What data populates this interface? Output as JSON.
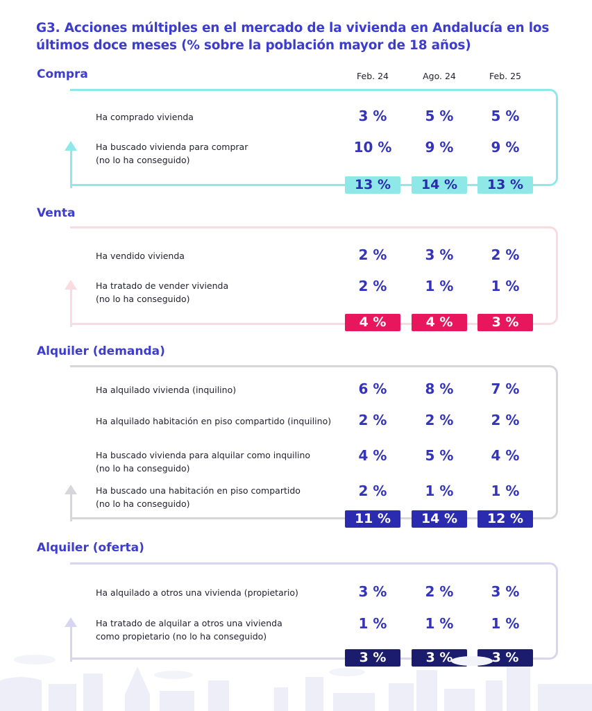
{
  "title": "G3. Acciones múltiples en el mercado de la vivienda en Andalucía en los últimos doce meses (% sobre la población mayor de 18 años)",
  "chart_data": {
    "type": "table",
    "columns": [
      "Feb. 24",
      "Ago. 24",
      "Feb. 25"
    ],
    "sections": [
      {
        "name": "Compra",
        "color": "#8ee8e8",
        "total_bg": "#8ee8e8",
        "total_fg": "#2a2ab0",
        "rows": [
          {
            "label": [
              "Ha comprado vivienda"
            ],
            "values": [
              "3 %",
              "5 %",
              "5 %"
            ]
          },
          {
            "label": [
              "Ha buscado vivienda para comprar",
              "(no lo ha conseguido)"
            ],
            "values": [
              "10 %",
              "9 %",
              "9 %"
            ]
          }
        ],
        "totals": [
          "13 %",
          "14 %",
          "13 %"
        ]
      },
      {
        "name": "Venta",
        "color": "#fbdbe2",
        "total_bg": "#e8175d",
        "total_fg": "#ffffff",
        "rows": [
          {
            "label": [
              "Ha vendido vivienda"
            ],
            "values": [
              "2 %",
              "3 %",
              "2 %"
            ]
          },
          {
            "label": [
              "Ha tratado de vender vivienda",
              "(no lo ha conseguido)"
            ],
            "values": [
              "2 %",
              "1 %",
              "1 %"
            ]
          }
        ],
        "totals": [
          "4 %",
          "4 %",
          "3 %"
        ]
      },
      {
        "name": "Alquiler (demanda)",
        "color": "#d6d6dc",
        "total_bg": "#2b2bb0",
        "total_fg": "#ffffff",
        "rows": [
          {
            "label": [
              "Ha alquilado vivienda (inquilino)"
            ],
            "values": [
              "6 %",
              "8 %",
              "7 %"
            ]
          },
          {
            "label": [
              "Ha alquilado habitación en piso compartido (inquilino)"
            ],
            "values": [
              "2 %",
              "2 %",
              "2 %"
            ]
          },
          {
            "label": [
              "Ha buscado vivienda para alquilar como inquilino",
              "(no lo ha conseguido)"
            ],
            "values": [
              "4 %",
              "5 %",
              "4 %"
            ]
          },
          {
            "label": [
              "Ha buscado una habitación en piso compartido",
              "(no lo ha conseguido)"
            ],
            "values": [
              "2 %",
              "1 %",
              "1 %"
            ]
          }
        ],
        "totals": [
          "11 %",
          "14 %",
          "12 %"
        ]
      },
      {
        "name": "Alquiler (oferta)",
        "color": "#d6d6f2",
        "total_bg": "#1c1c6e",
        "total_fg": "#ffffff",
        "rows": [
          {
            "label": [
              "Ha alquilado a otros una vivienda (propietario)"
            ],
            "values": [
              "3 %",
              "2 %",
              "3 %"
            ]
          },
          {
            "label": [
              "Ha tratado de alquilar a otros una vivienda",
              "como propietario (no lo ha conseguido)"
            ],
            "values": [
              "1 %",
              "1 %",
              "1 %"
            ]
          }
        ],
        "totals": [
          "3 %",
          "3 %",
          "3 %"
        ]
      }
    ]
  }
}
